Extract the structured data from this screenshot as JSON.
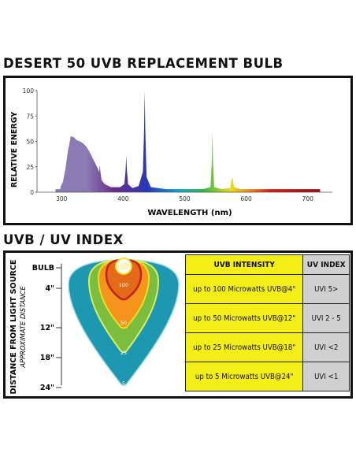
{
  "spectrum": {
    "title": "DESERT 50 UVB REPLACEMENT BULB"
  },
  "uv_index": {
    "title": "UVB / UV INDEX"
  },
  "colors": {
    "uva_violet": "#8a7bb5",
    "highlight_yellow": "#f4ee18",
    "uvi_gray": "#d0d0d0"
  },
  "chart_data": [
    {
      "type": "area",
      "title": "DESERT 50 UVB REPLACEMENT BULB",
      "xlabel": "WAVELENGTH (nm)",
      "ylabel": "RELATIVE ENERGY",
      "xlim": [
        260,
        740
      ],
      "ylim": [
        0,
        100
      ],
      "xticks": [
        300,
        400,
        500,
        600,
        700
      ],
      "yticks": [
        0,
        25,
        50,
        75,
        100
      ],
      "grid": false,
      "series": [
        {
          "x": [
            298,
            302,
            306,
            310,
            315,
            320,
            325,
            330,
            335,
            340,
            345,
            350,
            355,
            358,
            361,
            362,
            363,
            365,
            370,
            380,
            395,
            402,
            404,
            405,
            406,
            408,
            415,
            425,
            432,
            434,
            435,
            436,
            438,
            445,
            470,
            500,
            530,
            542,
            544,
            545,
            546,
            548,
            560,
            574,
            576,
            578,
            580,
            590,
            610,
            640,
            670,
            700
          ],
          "y": [
            5,
            10,
            22,
            40,
            55,
            54,
            51,
            50,
            48,
            45,
            40,
            34,
            28,
            24,
            20,
            27,
            20,
            12,
            8,
            5,
            5,
            8,
            22,
            36,
            22,
            8,
            4,
            6,
            20,
            60,
            100,
            60,
            15,
            5,
            3,
            3,
            3,
            5,
            30,
            59,
            30,
            5,
            3,
            4,
            12,
            14,
            5,
            3,
            2,
            2,
            1.5,
            1
          ]
        }
      ]
    },
    {
      "type": "table",
      "title": "UVB / UV INDEX",
      "columns": [
        "UVB INTENSITY",
        "UV INDEX"
      ],
      "rows": [
        [
          "up to 100 Microwatts UVB@4\"",
          "UVI 5>"
        ],
        [
          "up to 50 Microwatts UVB@12\"",
          "UVI 2 - 5"
        ],
        [
          "up to 25 Microwatts UVB@18\"",
          "UVI <2"
        ],
        [
          "up to 5 Microwatts UVB@24\"",
          "UVI <1"
        ]
      ],
      "distance_axis": {
        "label": "DISTANCE FROM LIGHT SOURCE",
        "sublabel": "APPROXIMATE DISTANCE",
        "ticks": [
          "BULB",
          "4\"",
          "12\"",
          "18\"",
          "24\""
        ]
      },
      "zones": [
        "100",
        "50",
        "25",
        "5"
      ]
    }
  ]
}
